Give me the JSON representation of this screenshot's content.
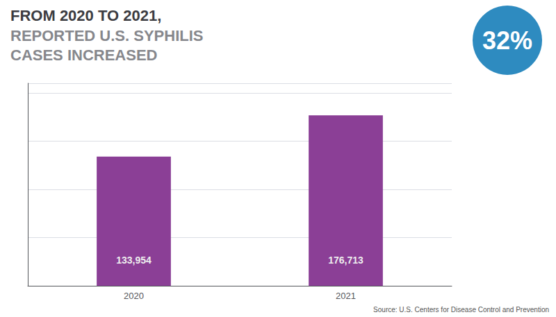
{
  "chart_data": {
    "type": "bar",
    "title": "FROM 2020 TO 2021,",
    "subtitle": "REPORTED U.S. SYPHILIS\nCASES INCREASED",
    "categories": [
      "2020",
      "2021"
    ],
    "values": [
      133954,
      176713
    ],
    "value_labels": [
      "133,954",
      "176,713"
    ],
    "data_labels": true,
    "color": "#8B3F96",
    "ylim": [
      0,
      210000
    ],
    "yticks": [
      0,
      50000,
      100000,
      150000,
      200000
    ],
    "grid": true,
    "tick_labels": "x",
    "annotations": [
      {
        "text": "32%",
        "color": "#2E8BC0"
      },
      {
        "text": "Source: U.S. Centers for Disease Control and Prevention"
      }
    ]
  }
}
